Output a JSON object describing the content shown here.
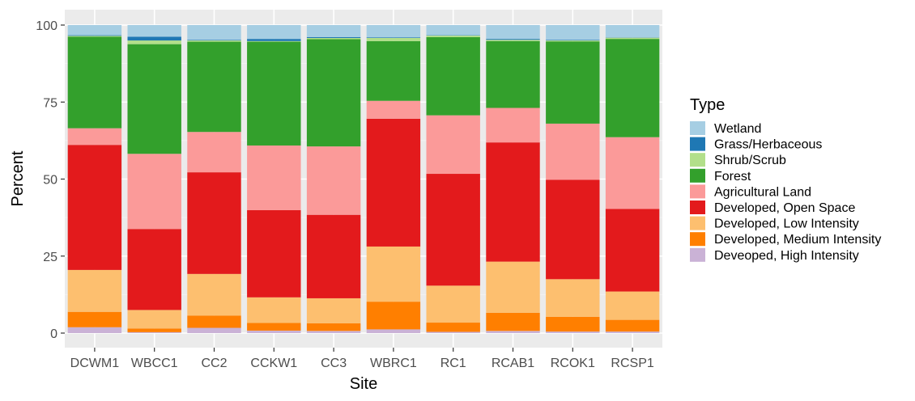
{
  "chart_data": {
    "type": "stacked-bar",
    "title": "",
    "xlabel": "Site",
    "ylabel": "Percent",
    "ylim": [
      0,
      100
    ],
    "yticks": [
      0,
      25,
      50,
      75,
      100
    ],
    "grid": true,
    "legend_position": "right",
    "legend_title": "Type",
    "categories": [
      "DCWM1",
      "WBCC1",
      "CC2",
      "CCKW1",
      "CC3",
      "WBRC1",
      "RC1",
      "RCAB1",
      "RCOK1",
      "RCSP1"
    ],
    "stack_order": "last series at bottom",
    "series": [
      {
        "name": "Wetland",
        "color": "#a6cee3",
        "values": [
          3.3,
          3.8,
          4.8,
          4.5,
          3.9,
          4.0,
          3.3,
          4.5,
          4.8,
          4.0
        ]
      },
      {
        "name": "Grass/Herbaceous",
        "color": "#1f78b4",
        "values": [
          0.2,
          1.2,
          0.2,
          0.7,
          0.3,
          0.2,
          0.1,
          0.3,
          0.2,
          0.1
        ]
      },
      {
        "name": "Shrub/Scrub",
        "color": "#b2df8a",
        "values": [
          0.3,
          1.2,
          0.4,
          0.2,
          0.4,
          1.0,
          0.5,
          0.4,
          0.3,
          0.4
        ]
      },
      {
        "name": "Forest",
        "color": "#33a02c",
        "values": [
          29.7,
          35.6,
          29.3,
          33.7,
          34.8,
          19.4,
          25.4,
          21.7,
          26.7,
          31.9
        ]
      },
      {
        "name": "Agricultural Land",
        "color": "#fb9a99",
        "values": [
          5.4,
          24.4,
          13.1,
          21.0,
          22.2,
          5.8,
          19.0,
          11.2,
          18.2,
          23.3
        ]
      },
      {
        "name": "Developed, Open Space",
        "color": "#e31a1c",
        "values": [
          40.6,
          26.3,
          33.0,
          28.3,
          27.1,
          41.5,
          36.3,
          38.7,
          32.3,
          26.8
        ]
      },
      {
        "name": "Developed, Low Intensity",
        "color": "#fdbf6f",
        "values": [
          13.6,
          6.0,
          13.5,
          8.3,
          8.1,
          17.9,
          12.0,
          16.6,
          12.2,
          9.2
        ]
      },
      {
        "name": "Developed, Medium Intensity",
        "color": "#ff7f00",
        "values": [
          5.0,
          1.2,
          4.0,
          2.5,
          2.5,
          9.0,
          3.0,
          5.9,
          4.8,
          3.8
        ]
      },
      {
        "name": "Deveoped, High Intensity",
        "color": "#cab2d6",
        "values": [
          1.9,
          0.3,
          1.7,
          0.8,
          0.7,
          1.2,
          0.4,
          0.7,
          0.5,
          0.5
        ]
      }
    ]
  }
}
